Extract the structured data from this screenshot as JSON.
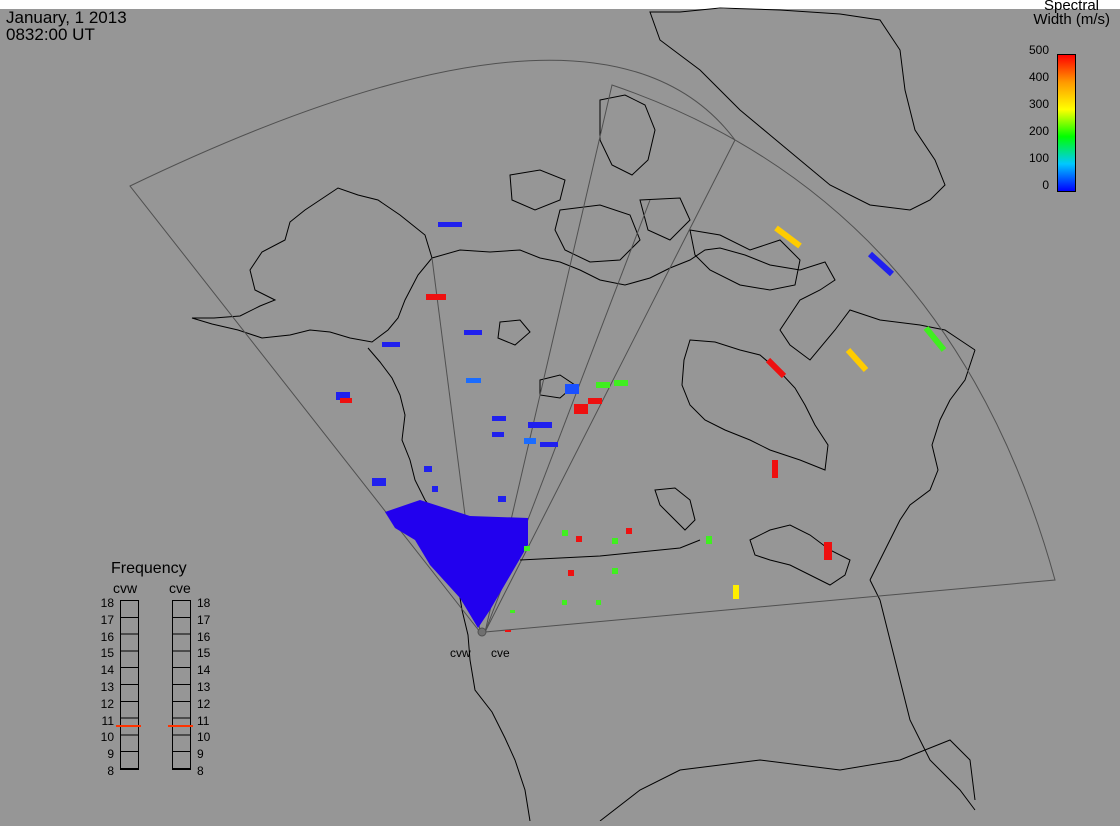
{
  "header": {
    "date": "January, 1 2013",
    "time": "0832:00 UT"
  },
  "colorbar": {
    "title_line1": "Spectral",
    "title_line2": "Width (m/s)",
    "ticks": [
      "500",
      "400",
      "300",
      "200",
      "100",
      "0"
    ],
    "range": [
      0,
      500
    ],
    "colors": [
      "#0000ff",
      "#00c8ff",
      "#00ff00",
      "#ffff00",
      "#ff9900",
      "#ff0000"
    ]
  },
  "frequency_panel": {
    "title": "Frequency",
    "radars": [
      {
        "name": "cvw",
        "marker_mhz": 10.6,
        "marker_color": "#ff3300"
      },
      {
        "name": "cve",
        "marker_mhz": 10.6,
        "marker_color": "#ff3300"
      }
    ],
    "ticks": [
      "18",
      "17",
      "16",
      "15",
      "14",
      "13",
      "12",
      "11",
      "10",
      "9",
      "8"
    ]
  },
  "sites": {
    "west": "cvw",
    "east": "cve"
  },
  "map": {
    "land_outline_color": "#000000",
    "fov_outline_color": "#505050",
    "background_color": "#969696"
  }
}
